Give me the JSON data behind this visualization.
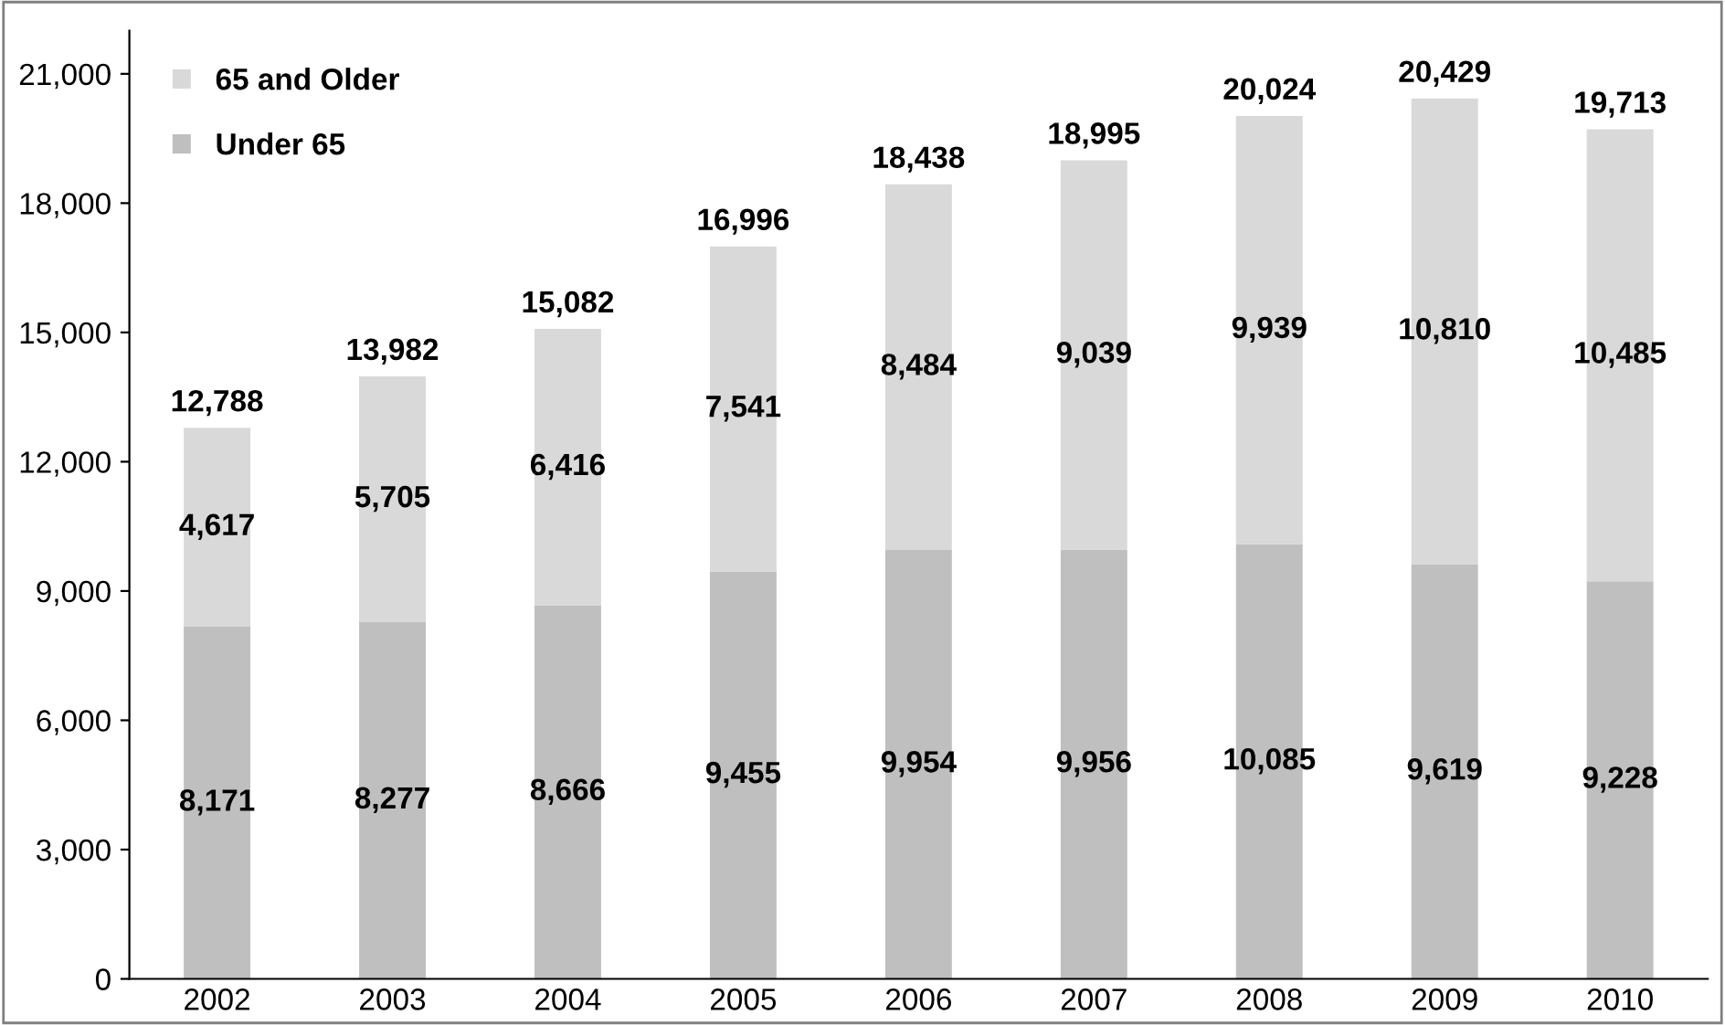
{
  "chart_data": {
    "type": "bar",
    "stacked": true,
    "categories": [
      "2002",
      "2003",
      "2004",
      "2005",
      "2006",
      "2007",
      "2008",
      "2009",
      "2010"
    ],
    "series": [
      {
        "name": "Under 65",
        "color": "#bfbfbf",
        "values": [
          8171,
          8277,
          8666,
          9455,
          9954,
          9956,
          10085,
          9619,
          9228
        ],
        "value_labels": [
          "8,171",
          "8,277",
          "8,666",
          "9,455",
          "9,954",
          "9,956",
          "10,085",
          "9,619",
          "9,228"
        ]
      },
      {
        "name": "65 and Older",
        "color": "#d9d9d9",
        "values": [
          4617,
          5705,
          6416,
          7541,
          8484,
          9039,
          9939,
          10810,
          10485
        ],
        "value_labels": [
          "4,617",
          "5,705",
          "6,416",
          "7,541",
          "8,484",
          "9,039",
          "9,939",
          "10,810",
          "10,485"
        ]
      }
    ],
    "totals": [
      "12,788",
      "13,982",
      "15,082",
      "16,996",
      "18,438",
      "18,995",
      "20,024",
      "20,429",
      "19,713"
    ],
    "ylim": [
      0,
      22000
    ],
    "yticks": [
      {
        "value": 0,
        "label": "0"
      },
      {
        "value": 3000,
        "label": "3,000"
      },
      {
        "value": 6000,
        "label": "6,000"
      },
      {
        "value": 9000,
        "label": "9,000"
      },
      {
        "value": 12000,
        "label": "12,000"
      },
      {
        "value": 15000,
        "label": "15,000"
      },
      {
        "value": 18000,
        "label": "18,000"
      },
      {
        "value": 21000,
        "label": "21,000"
      }
    ],
    "grid": false,
    "legend": "top left"
  }
}
